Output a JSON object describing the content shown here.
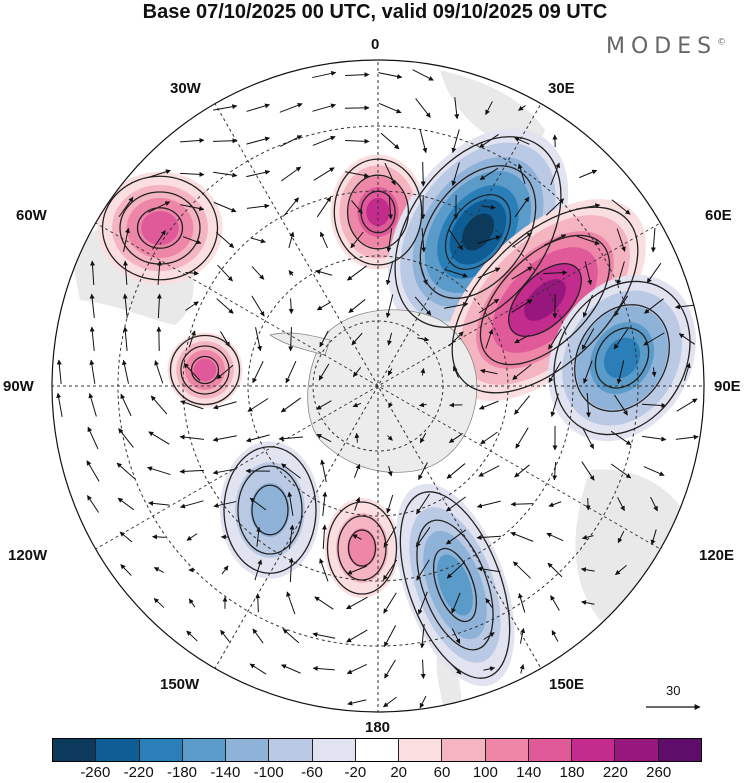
{
  "title": "Base 07/10/2025 00 UTC, valid 09/10/2025 09 UTC",
  "brand": "MODES",
  "brand_mark": "©",
  "longitude_labels": {
    "top": "0",
    "top_left": "30W",
    "top_right": "30E",
    "upper_left": "60W",
    "upper_right": "60E",
    "left": "90W",
    "right": "90E",
    "lower_left": "120W",
    "lower_right": "120E",
    "bottom_left": "150W",
    "bottom_right": "150E",
    "bottom": "180"
  },
  "reference_vector": {
    "value": "30"
  },
  "colorbar": {
    "ticks": [
      "-260",
      "-220",
      "-180",
      "-140",
      "-100",
      "-60",
      "-20",
      "20",
      "60",
      "100",
      "140",
      "180",
      "220",
      "260"
    ],
    "colors": [
      "#0b3a5c",
      "#0e5d94",
      "#2b7fb8",
      "#5a9bc9",
      "#8fb3d8",
      "#bac9e4",
      "#e2e3f1",
      "#ffffff",
      "#fbdfe0",
      "#f5b5c0",
      "#ee86a8",
      "#e05a9a",
      "#c32b8d",
      "#98177e",
      "#5e0e6a"
    ]
  },
  "anomalies": [
    {
      "name": "high-south-atlantic",
      "value": 180
    },
    {
      "name": "low-30e",
      "value": -260
    },
    {
      "name": "high-45e",
      "value": 240
    },
    {
      "name": "low-70e",
      "value": -200
    },
    {
      "name": "high-near-0",
      "value": 160
    },
    {
      "name": "high-60w",
      "value": 140
    },
    {
      "name": "low-pacific-170w",
      "value": -100
    },
    {
      "name": "high-pacific-170e",
      "value": 120
    },
    {
      "name": "low-150e",
      "value": -140
    }
  ]
}
